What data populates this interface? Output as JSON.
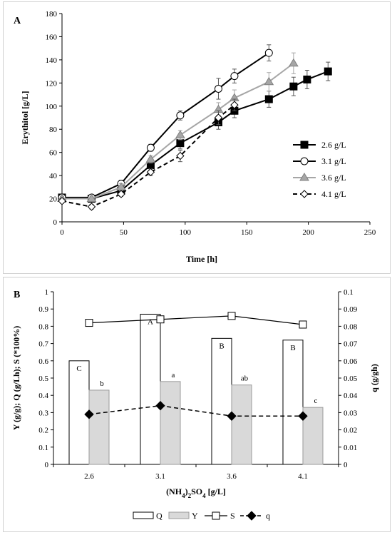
{
  "chart_data": [
    {
      "panel_label": "A",
      "type": "line",
      "xlabel": "Time [h]",
      "ylabel": "Erythitol [g/L]",
      "xlim": [
        0,
        250
      ],
      "ylim": [
        0,
        180
      ],
      "xticks": [
        "0",
        "50",
        "100",
        "150",
        "200",
        "250"
      ],
      "yticks": [
        "0",
        "20",
        "40",
        "60",
        "80",
        "100",
        "120",
        "140",
        "160",
        "180"
      ],
      "legend_position": "right",
      "series": [
        {
          "name": "2.6 g/L",
          "marker": "square-filled",
          "line": "solid",
          "color": "#000000",
          "x": [
            0,
            24,
            48,
            72,
            96,
            127,
            140,
            168,
            188,
            199,
            216
          ],
          "y": [
            21,
            20,
            27,
            49,
            68,
            86,
            96,
            106,
            117,
            123,
            130
          ],
          "err": [
            2,
            2,
            3,
            4,
            5,
            6,
            6,
            7,
            8,
            8,
            8
          ]
        },
        {
          "name": "3.1 g/L",
          "marker": "circle-open",
          "line": "solid",
          "color": "#000000",
          "x": [
            0,
            24,
            48,
            72,
            96,
            127,
            140,
            168
          ],
          "y": [
            21,
            21,
            33,
            64,
            92,
            115,
            126,
            146
          ],
          "err": [
            2,
            2,
            3,
            3,
            4,
            9,
            6,
            7
          ]
        },
        {
          "name": "3.6 g/L",
          "marker": "triangle-gray",
          "line": "solid",
          "color": "#a6a6a6",
          "x": [
            0,
            24,
            48,
            72,
            96,
            127,
            140,
            168,
            188
          ],
          "y": [
            20,
            20,
            30,
            54,
            75,
            97,
            107,
            121,
            137
          ],
          "err": [
            2,
            2,
            3,
            3,
            4,
            6,
            7,
            8,
            9
          ]
        },
        {
          "name": "4.1 g/L",
          "marker": "diamond-open",
          "line": "dashed",
          "color": "#000000",
          "x": [
            0,
            24,
            48,
            72,
            96,
            127,
            140
          ],
          "y": [
            18,
            13,
            24,
            43,
            57,
            90,
            101
          ],
          "err": [
            2,
            2,
            2,
            3,
            5,
            6,
            5
          ]
        }
      ]
    },
    {
      "panel_label": "B",
      "type": "bar",
      "xlabel": "(NH4)2SO4 [g/L]",
      "ylabel_left": "Y (g/g); Q (g/Lh); S (*100%)",
      "ylabel_right": "q (g/gh)",
      "categories": [
        "2.6",
        "3.1",
        "3.6",
        "4.1"
      ],
      "ylim_left": [
        0,
        1
      ],
      "ylim_right": [
        0,
        0.1
      ],
      "yticks_left": [
        "0",
        "0.1",
        "0.2",
        "0.3",
        "0.4",
        "0.5",
        "0.6",
        "0.7",
        "0.8",
        "0.9",
        "1"
      ],
      "yticks_right": [
        "0",
        "0.01",
        "0.02",
        "0.03",
        "0.04",
        "0.05",
        "0.06",
        "0.07",
        "0.08",
        "0.09",
        "0.1"
      ],
      "legend_position": "bottom",
      "legend_labels": [
        "Q",
        "Y",
        "S",
        "q"
      ],
      "series": [
        {
          "name": "Q",
          "kind": "bar",
          "fill": "#ffffff",
          "values": [
            0.6,
            0.87,
            0.73,
            0.72
          ],
          "labels": [
            "C",
            "A",
            "B",
            "B"
          ]
        },
        {
          "name": "Y",
          "kind": "bar",
          "fill": "#d9d9d9",
          "values": [
            0.43,
            0.48,
            0.46,
            0.33
          ],
          "labels": [
            "b",
            "a",
            "ab",
            "c"
          ]
        },
        {
          "name": "S",
          "kind": "line",
          "marker": "square-open",
          "axis": "left",
          "values": [
            0.82,
            0.84,
            0.86,
            0.81
          ]
        },
        {
          "name": "q",
          "kind": "line",
          "marker": "diamond-filled",
          "line": "dashed",
          "axis": "right",
          "values": [
            0.029,
            0.034,
            0.028,
            0.028
          ]
        }
      ]
    }
  ]
}
